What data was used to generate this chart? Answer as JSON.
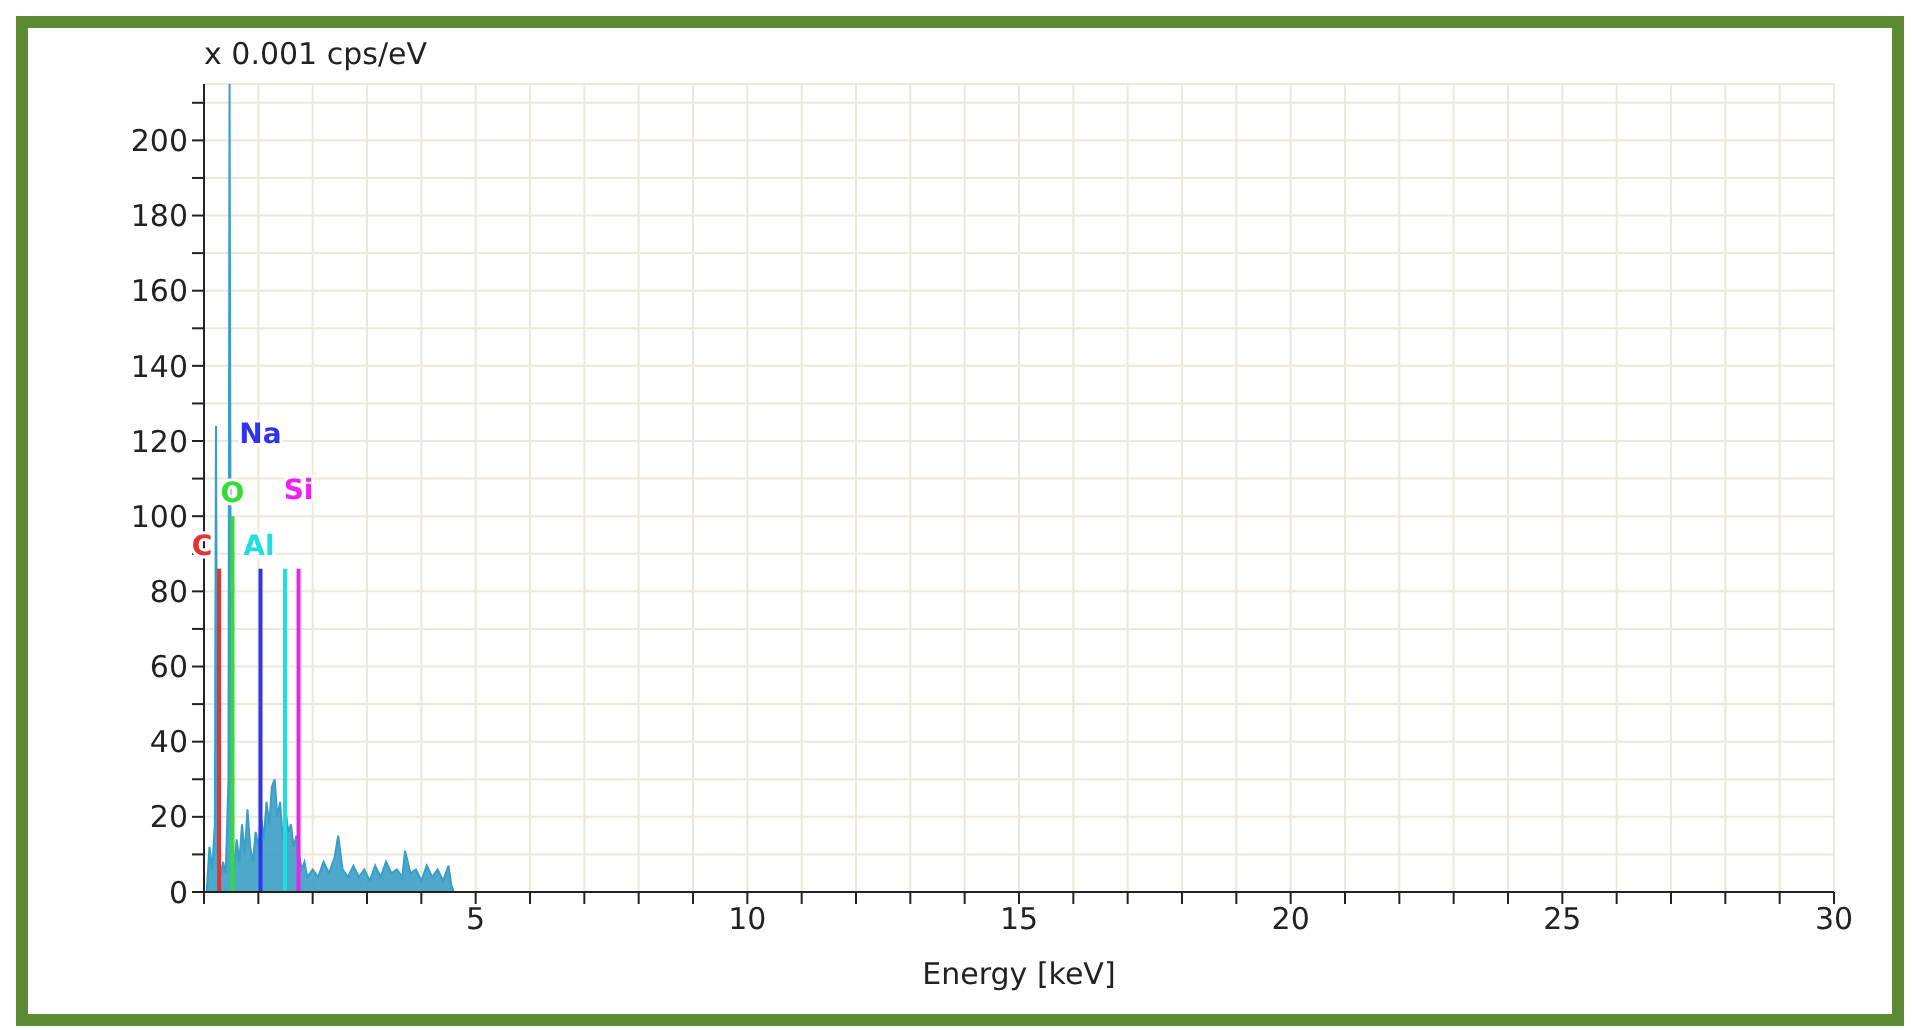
{
  "chart_data": {
    "type": "area",
    "ylabel": "x 0.001 cps/eV",
    "xlabel": "Energy [keV]",
    "series": [
      {
        "color": "#3a9ec6",
        "x": [
          0.05,
          0.1,
          0.15,
          0.2,
          0.22,
          0.25,
          0.3,
          0.35,
          0.4,
          0.45,
          0.47,
          0.5,
          0.55,
          0.6,
          0.65,
          0.7,
          0.75,
          0.8,
          0.85,
          0.9,
          0.95,
          1.0,
          1.05,
          1.1,
          1.15,
          1.2,
          1.25,
          1.3,
          1.35,
          1.4,
          1.45,
          1.5,
          1.55,
          1.6,
          1.65,
          1.7,
          1.75,
          1.8,
          1.85,
          1.9,
          2.0,
          2.1,
          2.2,
          2.3,
          2.4,
          2.47,
          2.55,
          2.65,
          2.75,
          2.85,
          2.95,
          3.05,
          3.15,
          3.25,
          3.35,
          3.45,
          3.55,
          3.65,
          3.7,
          3.8,
          3.9,
          4.0,
          4.1,
          4.2,
          4.3,
          4.4,
          4.5,
          4.55,
          4.6
        ],
        "values": [
          0,
          12,
          6,
          18,
          124,
          10,
          4,
          8,
          5,
          30,
          215,
          20,
          6,
          14,
          8,
          18,
          10,
          22,
          12,
          8,
          16,
          12,
          20,
          14,
          24,
          18,
          28,
          30,
          20,
          24,
          14,
          22,
          16,
          18,
          12,
          15,
          10,
          6,
          8,
          4,
          6,
          4,
          8,
          5,
          9,
          15,
          6,
          4,
          7,
          4,
          6,
          3,
          7,
          4,
          8,
          5,
          6,
          4,
          11,
          5,
          6,
          3,
          7,
          4,
          6,
          3,
          7,
          2,
          0
        ]
      },
      {
        "type": "line",
        "name": "C",
        "color": "#e53333",
        "x": [
          0.277,
          0.277
        ],
        "values": [
          0,
          86
        ]
      },
      {
        "type": "line",
        "name": "O",
        "color": "#33dd33",
        "x": [
          0.525,
          0.525
        ],
        "values": [
          0,
          100
        ]
      },
      {
        "type": "line",
        "name": "Na",
        "color": "#3333ee",
        "x": [
          1.04,
          1.04
        ],
        "values": [
          0,
          86
        ]
      },
      {
        "type": "line",
        "name": "Al",
        "color": "#22dddd",
        "x": [
          1.49,
          1.49
        ],
        "values": [
          0,
          86
        ]
      },
      {
        "type": "line",
        "name": "Si",
        "color": "#ee22ee",
        "x": [
          1.74,
          1.74
        ],
        "values": [
          0,
          86
        ]
      }
    ],
    "xlim": [
      0,
      30
    ],
    "xticks": [
      {
        "value": 0,
        "label": null
      },
      {
        "value": 1,
        "label": null
      },
      {
        "value": 2,
        "label": null
      },
      {
        "value": 3,
        "label": null
      },
      {
        "value": 4,
        "label": null
      },
      5,
      {
        "value": 6,
        "label": null
      },
      {
        "value": 7,
        "label": null
      },
      {
        "value": 8,
        "label": null
      },
      {
        "value": 9,
        "label": null
      },
      10,
      {
        "value": 11,
        "label": null
      },
      {
        "value": 12,
        "label": null
      },
      {
        "value": 13,
        "label": null
      },
      {
        "value": 14,
        "label": null
      },
      15,
      {
        "value": 16,
        "label": null
      },
      {
        "value": 17,
        "label": null
      },
      {
        "value": 18,
        "label": null
      },
      {
        "value": 19,
        "label": null
      },
      20,
      {
        "value": 21,
        "label": null
      },
      {
        "value": 22,
        "label": null
      },
      {
        "value": 23,
        "label": null
      },
      {
        "value": 24,
        "label": null
      },
      25,
      {
        "value": 26,
        "label": null
      },
      {
        "value": 27,
        "label": null
      },
      {
        "value": 28,
        "label": null
      },
      {
        "value": 29,
        "label": null
      },
      30
    ],
    "ylim": [
      0,
      215
    ],
    "yticks": [
      0,
      {
        "value": 10,
        "label": null
      },
      20,
      {
        "value": 30,
        "label": null
      },
      40,
      {
        "value": 50,
        "label": null
      },
      60,
      {
        "value": 70,
        "label": null
      },
      80,
      {
        "value": 90,
        "label": null
      },
      100,
      {
        "value": 110,
        "label": null
      },
      120,
      {
        "value": 130,
        "label": null
      },
      140,
      {
        "value": 150,
        "label": null
      },
      160,
      {
        "value": 170,
        "label": null
      },
      180,
      {
        "value": 190,
        "label": null
      },
      200,
      {
        "value": 210,
        "label": null
      }
    ],
    "grid": true
  }
}
